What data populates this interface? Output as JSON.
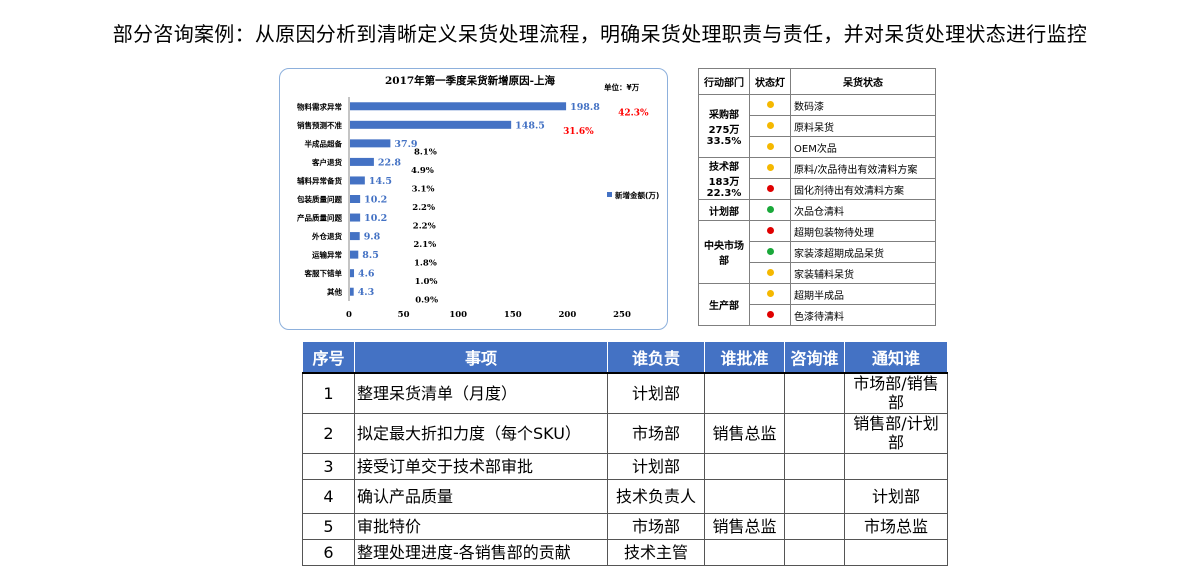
{
  "headline": "部分咨询案例：从原因分析到清晰定义呆货处理流程，明确呆货处理职责与责任，并对呆货处理状态进行监控",
  "chart_data": {
    "type": "bar",
    "title": "2017年第一季度呆货新增原因-上海",
    "unit": "单位：¥万",
    "legend": "新增金额(万)",
    "categories": [
      "物料需求异常",
      "销售预测不准",
      "半成品超备",
      "客户退货",
      "辅料异常备货",
      "包装质量问题",
      "产品质量问题",
      "外仓退货",
      "运输异常",
      "客服下错单",
      "其他"
    ],
    "values": [
      198.8,
      148.5,
      37.9,
      22.8,
      14.5,
      10.2,
      10.2,
      9.8,
      8.5,
      4.6,
      4.3
    ],
    "percents": [
      "42.3%",
      "31.6%",
      "8.1%",
      "4.9%",
      "3.1%",
      "2.2%",
      "2.2%",
      "2.1%",
      "1.8%",
      "1.0%",
      "0.9%"
    ],
    "xticks": [
      "0",
      "50",
      "100",
      "150",
      "200",
      "250"
    ],
    "xlim": [
      0,
      250
    ],
    "bar_color": "#4472c4",
    "highlight_color": "#ff0000"
  },
  "status_table": {
    "headers": [
      "行动部门",
      "状态灯",
      "呆货状态"
    ],
    "rows": [
      {
        "dept": "采购部\n275万\n33.5%",
        "span": 3,
        "lamp": "#f5b800",
        "status": "数码漆"
      },
      {
        "lamp": "#f5b800",
        "status": "原料呆货"
      },
      {
        "lamp": "#f5b800",
        "status": "OEM次品"
      },
      {
        "dept": "技术部\n183万\n22.3%",
        "span": 2,
        "lamp": "#f5b800",
        "status": "原料/次品待出有效清料方案"
      },
      {
        "lamp": "#e00000",
        "status": "固化剂待出有效清料方案"
      },
      {
        "dept": "计划部",
        "span": 1,
        "lamp": "#1aa83a",
        "status": "次品仓清料"
      },
      {
        "dept": "中央市场\n部",
        "span": 3,
        "lamp": "#e00000",
        "status": "超期包装物待处理"
      },
      {
        "lamp": "#1aa83a",
        "status": "家装漆超期成品呆货"
      },
      {
        "lamp": "#f5b800",
        "status": "家装辅料呆货"
      },
      {
        "dept": "生产部",
        "span": 2,
        "lamp": "#f5b800",
        "status": "超期半成品"
      },
      {
        "lamp": "#e00000",
        "status": "色漆待清料"
      }
    ]
  },
  "task_table": {
    "headers": [
      "序号",
      "事项",
      "谁负责",
      "谁批准",
      "咨询谁",
      "通知谁"
    ],
    "rows": [
      [
        "1",
        "整理呆货清单（月度）",
        "计划部",
        "",
        "",
        "市场部/销售部"
      ],
      [
        "2",
        "拟定最大折扣力度（每个SKU）",
        "市场部",
        "销售总监",
        "",
        "销售部/计划部"
      ],
      [
        "3",
        "接受订单交于技术部审批",
        "计划部",
        "",
        "",
        ""
      ],
      [
        "4",
        "确认产品质量",
        "技术负责人",
        "",
        "",
        "计划部"
      ],
      [
        "5",
        "审批特价",
        "市场部",
        "销售总监",
        "",
        "市场总监"
      ],
      [
        "6",
        "整理处理进度-各销售部的贡献",
        "技术主管",
        "",
        "",
        ""
      ]
    ]
  }
}
